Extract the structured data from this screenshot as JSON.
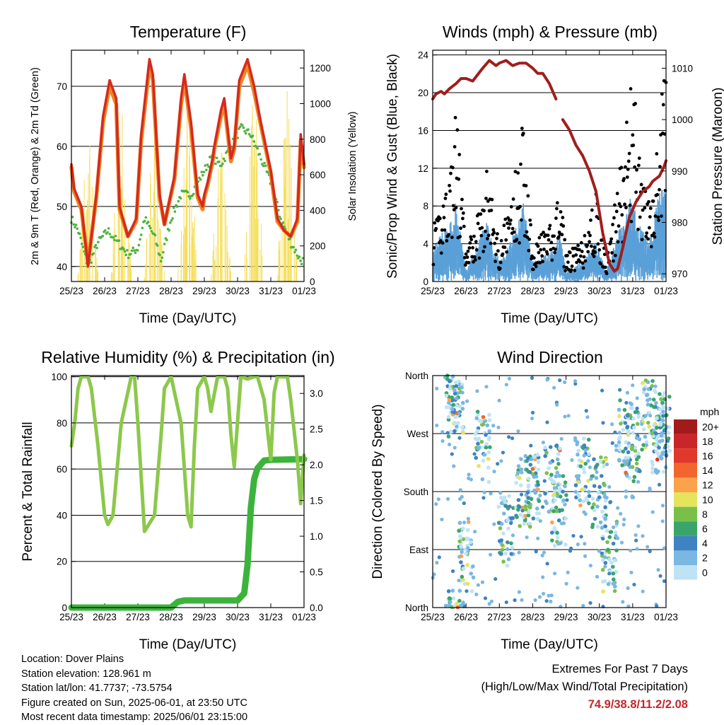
{
  "colors": {
    "temp2m": "#d42a20",
    "temp9m": "#f0851e",
    "dewpoint": "#4db33f",
    "solar": "#f5de5a",
    "gust": "#000000",
    "wind": "#5aa0d8",
    "pressure": "#a01e1e",
    "rh": "#8cc84b",
    "precip": "#3cb43c",
    "extremes": "#c1272d"
  },
  "x_ticks": [
    "25/23",
    "26/23",
    "27/23",
    "28/23",
    "29/23",
    "30/23",
    "31/23",
    "01/23"
  ],
  "info": {
    "location": "Location: Dover Plains",
    "elevation": "Station elevation: 128.961 m",
    "latlon": "Station lat/lon: 41.7737; -73.5754",
    "created": "Figure created on Sun, 2025-06-01, at 23:50 UTC",
    "recent": "Most recent data timestamp: 2025/06/01 23:15:00"
  },
  "extremes": {
    "title": "Extremes For Past 7 Days",
    "subtitle": "(High/Low/Max Wind/Total Precipitation)",
    "values": "74.9/38.8/11.2/2.08"
  },
  "chart_data": [
    {
      "type": "line",
      "title": "Temperature (F)",
      "xlabel": "Time (Day/UTC)",
      "ylabel": "2m & 9m T (Red, Orange) & 2m Td (Green)",
      "y2label": "Solar Insolation (Yellow)",
      "xlim": [
        0,
        7
      ],
      "ylim": [
        37.5,
        76
      ],
      "y2lim": [
        0,
        1300
      ],
      "yticks": [
        40,
        50,
        60,
        70
      ],
      "y2ticks": [
        0,
        200,
        400,
        600,
        800,
        1000,
        1200
      ],
      "series": [
        {
          "name": "2m T",
          "x": [
            0,
            0.08,
            0.3,
            0.5,
            0.75,
            0.95,
            1.15,
            1.35,
            1.45,
            1.7,
            1.95,
            2.1,
            2.35,
            2.45,
            2.65,
            2.8,
            3.1,
            3.3,
            3.4,
            3.6,
            3.8,
            3.95,
            4.0,
            4.1,
            4.25,
            4.3,
            4.5,
            4.6,
            4.8,
            4.9,
            5.05,
            5.3,
            5.5,
            5.7,
            6.0,
            6.2,
            6.4,
            6.6,
            6.8,
            6.9,
            7.0
          ],
          "values": [
            57,
            53,
            50,
            40,
            52,
            65,
            71,
            68,
            50,
            45,
            48,
            62,
            74.5,
            72,
            52,
            47,
            55,
            68,
            72,
            64,
            52,
            50,
            52,
            54,
            58,
            60,
            66,
            68,
            58,
            60,
            71,
            74.5,
            70,
            64,
            56,
            48,
            46,
            45,
            48,
            62,
            57
          ]
        },
        {
          "name": "9m T",
          "x": [
            0,
            0.08,
            0.3,
            0.5,
            0.75,
            0.95,
            1.15,
            1.35,
            1.45,
            1.7,
            1.95,
            2.1,
            2.35,
            2.45,
            2.65,
            2.8,
            3.1,
            3.3,
            3.4,
            3.6,
            3.8,
            3.95,
            4.0,
            4.1,
            4.25,
            4.3,
            4.5,
            4.6,
            4.8,
            4.9,
            5.05,
            5.3,
            5.5,
            5.7,
            6.0,
            6.2,
            6.4,
            6.6,
            6.8,
            6.9,
            7.0
          ],
          "values": [
            56.5,
            52.5,
            49.5,
            40.5,
            51.5,
            64,
            70,
            67,
            49.5,
            45,
            47.5,
            61,
            73.5,
            71,
            51.5,
            47,
            54.5,
            67,
            71,
            63,
            51.5,
            49.5,
            51.5,
            53.5,
            57.5,
            59.5,
            65,
            67,
            57.5,
            59.5,
            70,
            73.5,
            69,
            63.5,
            55.5,
            47.5,
            46,
            45,
            47.5,
            61,
            56.5
          ]
        },
        {
          "name": "2m Td",
          "x": [
            0,
            0.2,
            0.5,
            0.8,
            1.1,
            1.4,
            1.7,
            2.0,
            2.2,
            2.5,
            2.7,
            3.0,
            3.3,
            3.6,
            3.9,
            4.2,
            4.5,
            4.8,
            5.1,
            5.4,
            5.7,
            6.0,
            6.3,
            6.6,
            6.9,
            7.0
          ],
          "values": [
            48,
            46,
            40,
            44,
            46,
            44,
            42,
            43,
            48,
            45,
            41,
            48,
            52,
            52,
            55,
            58,
            57,
            60,
            63,
            62,
            58,
            54,
            48,
            44,
            41,
            41
          ]
        },
        {
          "name": "Solar Insolation",
          "axis": "y2",
          "x": [
            0.5,
            1.5,
            2.5,
            3.5,
            4.5,
            5.5,
            6.5
          ],
          "values": [
            1050,
            1100,
            1150,
            1050,
            900,
            1200,
            1270
          ]
        }
      ]
    },
    {
      "type": "line",
      "title": "Winds (mph) & Pressure (mb)",
      "xlabel": "Time (Day/UTC)",
      "ylabel": "Sonic/Prop Wind & Gust (Blue, Black)",
      "y2label": "Station Pressure (Maroon)",
      "xlim": [
        0,
        7
      ],
      "ylim": [
        0,
        24.5
      ],
      "y2lim": [
        968.5,
        1013.5
      ],
      "yticks": [
        0,
        4,
        8,
        12,
        16,
        20,
        24
      ],
      "y2ticks": [
        970,
        980,
        990,
        1000,
        1010
      ],
      "series": [
        {
          "name": "Pressure",
          "axis": "y2",
          "x": [
            0,
            0.1,
            0.25,
            0.35,
            0.5,
            0.7,
            0.85,
            1.0,
            1.2,
            1.5,
            1.7,
            1.9,
            2.0,
            2.2,
            2.4,
            2.6,
            2.8,
            3.0,
            3.15,
            3.3,
            3.5,
            3.7
          ],
          "values": [
            1004,
            1005,
            1005.5,
            1005,
            1006,
            1007,
            1008,
            1008,
            1007.5,
            1010,
            1011.5,
            1010.5,
            1011,
            1011.5,
            1010.5,
            1011,
            1011,
            1010,
            1009,
            1009,
            1007,
            1004
          ]
        },
        {
          "name": "Pressure",
          "axis": "y2",
          "x": [
            3.9,
            4.1,
            4.3,
            4.5,
            4.7,
            4.9,
            5.0,
            5.1,
            5.2,
            5.3,
            5.45,
            5.55,
            5.7,
            5.9,
            6.1,
            6.3,
            6.5,
            6.6,
            6.8,
            6.95,
            7.0
          ],
          "values": [
            1000,
            998,
            995,
            993,
            990,
            986,
            982,
            978,
            975,
            972,
            970.5,
            971,
            975,
            981,
            984,
            986,
            987,
            988,
            989,
            991,
            992
          ]
        },
        {
          "name": "Gust",
          "style": "dots",
          "x": [
            0.1,
            0.6,
            0.7,
            1.0,
            1.5,
            1.6,
            2.0,
            2.2,
            2.6,
            2.7,
            3.0,
            3.6,
            3.8,
            4.0,
            4.5,
            4.9,
            5.2,
            5.4,
            5.5,
            5.8,
            6.0,
            6.3,
            6.5,
            6.8,
            6.9
          ],
          "values": [
            6,
            14,
            18,
            3,
            9,
            12,
            4,
            7,
            13,
            17,
            4,
            6,
            10,
            3,
            4,
            9,
            2,
            6,
            9,
            16,
            21,
            11,
            8,
            16,
            22
          ]
        },
        {
          "name": "Wind",
          "style": "band",
          "x": [
            0.1,
            0.6,
            0.7,
            1.0,
            1.5,
            1.6,
            2.0,
            2.2,
            2.6,
            2.7,
            3.0,
            3.6,
            3.8,
            4.0,
            4.5,
            4.9,
            5.2,
            5.4,
            5.5,
            5.8,
            6.0,
            6.3,
            6.5,
            6.8,
            6.9
          ],
          "values": [
            4,
            6,
            8,
            1,
            5,
            6,
            2,
            3,
            6,
            8,
            2,
            3,
            5,
            1,
            2,
            4,
            1,
            3,
            4,
            8,
            8,
            5,
            4,
            9,
            9
          ]
        }
      ]
    },
    {
      "type": "line",
      "title": "Relative Humidity (%) & Precipitation (in)",
      "xlabel": "Time (Day/UTC)",
      "ylabel": "Percent & Total Rainfall",
      "xlim": [
        0,
        7
      ],
      "ylim": [
        0,
        100.5
      ],
      "y2lim": [
        0,
        3.25
      ],
      "yticks": [
        0,
        20,
        40,
        60,
        80,
        100
      ],
      "y2ticks": [
        0.0,
        0.5,
        1.0,
        1.5,
        2.0,
        2.5,
        3.0
      ],
      "series": [
        {
          "name": "Relative Humidity",
          "x": [
            0,
            0.1,
            0.2,
            0.3,
            0.5,
            0.6,
            0.8,
            1.0,
            1.1,
            1.25,
            1.5,
            1.8,
            1.9,
            2.0,
            2.2,
            2.5,
            2.7,
            2.8,
            3.0,
            3.3,
            3.5,
            3.6,
            3.7,
            3.8,
            4.0,
            4.1,
            4.2,
            4.4,
            4.6,
            4.7,
            4.8,
            4.9,
            5.1,
            5.3,
            5.5,
            5.6,
            5.8,
            6.0,
            6.1,
            6.2,
            6.5,
            6.6,
            6.8,
            6.9,
            7.0
          ],
          "values": [
            70,
            80,
            95,
            100,
            100,
            95,
            70,
            40,
            36,
            40,
            80,
            100,
            100,
            80,
            33,
            40,
            75,
            95,
            100,
            80,
            40,
            35,
            70,
            95,
            100,
            95,
            85,
            100,
            100,
            95,
            75,
            61,
            100,
            99,
            100,
            100,
            90,
            64,
            93,
            100,
            100,
            90,
            64,
            45,
            66
          ]
        },
        {
          "name": "Precipitation",
          "axis": "y2",
          "x": [
            0,
            1.0,
            2.0,
            3.0,
            3.2,
            3.4,
            4.0,
            5.0,
            5.2,
            5.3,
            5.35,
            5.4,
            5.5,
            5.6,
            5.8,
            6.0,
            7.0
          ],
          "values": [
            0,
            0,
            0,
            0,
            0.08,
            0.1,
            0.1,
            0.1,
            0.2,
            0.6,
            1.0,
            1.4,
            1.8,
            1.95,
            2.06,
            2.07,
            2.08
          ]
        }
      ]
    },
    {
      "type": "scatter",
      "title": "Wind Direction",
      "xlabel": "Time (Day/UTC)",
      "ylabel": "Direction (Colored By Speed)",
      "xlim": [
        0,
        7
      ],
      "ylim": [
        0,
        360
      ],
      "ytick_labels": [
        "North",
        "East",
        "South",
        "West",
        "North"
      ],
      "ytick_values": [
        0,
        90,
        180,
        270,
        360
      ],
      "legend_title": "mph",
      "legend_labels": [
        "20+",
        "18",
        "16",
        "14",
        "12",
        "10",
        "8",
        "6",
        "4",
        "2",
        "0"
      ],
      "legend_colors": [
        "#a31a1c",
        "#c9262b",
        "#e0382a",
        "#f2652e",
        "#fba24a",
        "#e6e35c",
        "#79c04b",
        "#3aa56a",
        "#3e83c2",
        "#7ab7e3",
        "#bfe3f5"
      ],
      "series": [
        {
          "name": "Direction",
          "x": [
            0.6,
            0.7,
            1.0,
            1.5,
            2.2,
            2.7,
            3.0,
            3.6,
            3.8,
            4.5,
            5.0,
            5.3,
            5.8,
            6.0,
            6.5,
            6.8,
            6.9
          ],
          "values": [
            340,
            320,
            80,
            250,
            120,
            180,
            190,
            200,
            150,
            210,
            180,
            80,
            270,
            250,
            300,
            260,
            280
          ]
        }
      ]
    }
  ]
}
